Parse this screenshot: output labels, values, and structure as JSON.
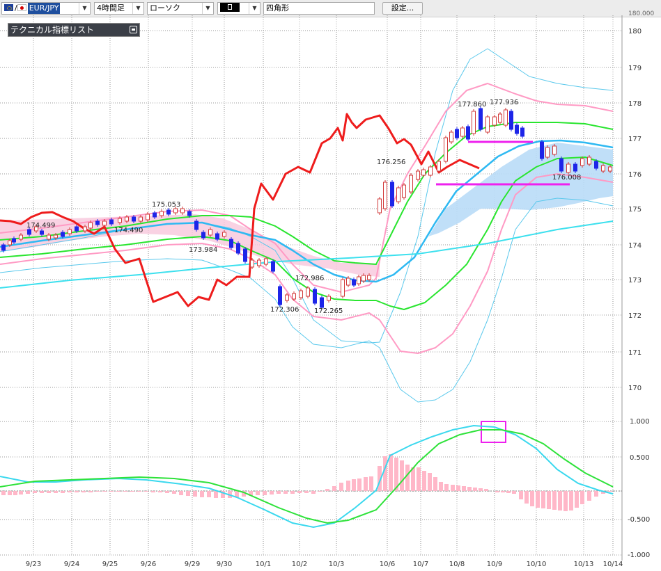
{
  "toolbar": {
    "symbol": "EUR/JPY",
    "symbol_prefix": "/",
    "timeframe": "4時間足",
    "chart_style": "ローソク",
    "drawing_tool_value": "",
    "shape": "四角形",
    "settings_button": "設定..."
  },
  "panel": {
    "title": "テクニカル指標リスト"
  },
  "price_axis": {
    "labels": [
      "180",
      "179",
      "178",
      "177",
      "176",
      "175",
      "174",
      "173",
      "172",
      "171",
      "170"
    ],
    "top_partial": "180.000"
  },
  "osc_axis": {
    "labels": [
      "1.000",
      "0.500",
      "-0.500",
      "-1.000"
    ]
  },
  "date_axis": {
    "labels": [
      "9/23",
      "9/24",
      "9/25",
      "9/26",
      "9/29",
      "9/30",
      "10/1",
      "10/2",
      "10/3",
      "10/6",
      "10/7",
      "10/8",
      "10/9",
      "10/10",
      "10/13",
      "10/14"
    ]
  },
  "annotations": [
    {
      "text": "174.499"
    },
    {
      "text": "174.490"
    },
    {
      "text": "175.053"
    },
    {
      "text": "173.984"
    },
    {
      "text": "172.986"
    },
    {
      "text": "172.306"
    },
    {
      "text": "172.265"
    },
    {
      "text": "176.256"
    },
    {
      "text": "177.860"
    },
    {
      "text": "177.936"
    },
    {
      "text": "176.008"
    }
  ],
  "colors": {
    "chikou_span": "#ee1c1c",
    "bollinger_outer": "#59c8ec",
    "bollinger_mid_band": "#ff9ac4",
    "green_band": "#29e52f",
    "base_line": "#2eb9f2",
    "long_ma": "#3ce0ee",
    "cloud": "#b9dcf7",
    "cloud_pink": "#f8c7dc",
    "candle_up": "#d23a3a",
    "candle_down": "#1d25e8",
    "drawn_lines": "#ee21ee",
    "macd_line": "#3ad8ee",
    "signal_line": "#2ee23a",
    "histogram": "#ffb7c8"
  }
}
